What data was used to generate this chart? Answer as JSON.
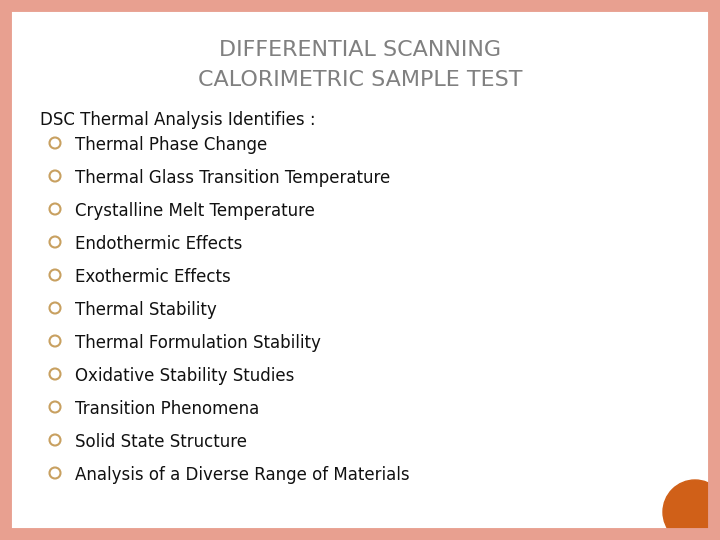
{
  "title_line1": "DIFFERENTIAL SCANNING",
  "title_line2": "CALORIMETRIC SAMPLE TEST",
  "title_color": "#808080",
  "title_fontsize": 16,
  "header": "DSC Thermal Analysis Identifies :",
  "header_fontsize": 12,
  "header_color": "#111111",
  "bullet_items": [
    "Thermal Phase Change",
    "Thermal Glass Transition Temperature",
    "Crystalline Melt Temperature",
    "Endothermic Effects",
    "Exothermic Effects",
    "Thermal Stability",
    "Thermal Formulation Stability",
    "Oxidative Stability Studies",
    "Transition Phenomena",
    "Solid State Structure",
    "Analysis of a Diverse Range of Materials"
  ],
  "bullet_fontsize": 12,
  "bullet_color": "#111111",
  "bullet_marker_color": "#c8a060",
  "background_color": "#ffffff",
  "border_color": "#e8a090",
  "border_width": 10,
  "orange_circle_color": "#d06018",
  "fig_width": 7.2,
  "fig_height": 5.4,
  "dpi": 100
}
